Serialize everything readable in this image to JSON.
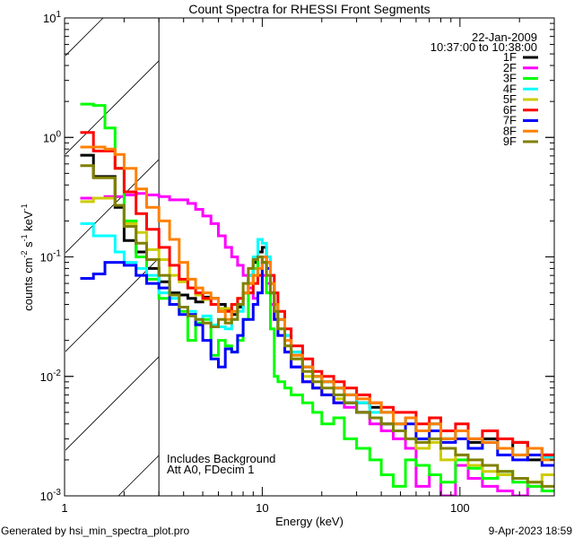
{
  "chart_data": {
    "type": "line",
    "title": "Count Spectra for RHESSI Front Segments",
    "xlabel": "Energy (keV)",
    "ylabel": {
      "base": "counts cm",
      "parts": [
        [
          "cm",
          "-2"
        ],
        [
          "s",
          "-1"
        ],
        [
          "keV",
          "-1"
        ]
      ]
    },
    "ylabel_text": "counts cm^-2 s^-1 keV^-1",
    "xscale": "log",
    "yscale": "log",
    "xlim": [
      1,
      300
    ],
    "ylim": [
      0.001,
      10
    ],
    "x_tick_labels": [
      {
        "v": 1,
        "label": "1"
      },
      {
        "v": 10,
        "label": "10"
      },
      {
        "v": 100,
        "label": "100"
      }
    ],
    "y_tick_labels": [
      {
        "v": 0.001,
        "base": "10",
        "exp": "-3"
      },
      {
        "v": 0.01,
        "base": "10",
        "exp": "-2"
      },
      {
        "v": 0.1,
        "base": "10",
        "exp": "-1"
      },
      {
        "v": 1,
        "base": "10",
        "exp": "0"
      },
      {
        "v": 10,
        "base": "10",
        "exp": "1"
      }
    ],
    "shaded_region_keV": [
      1,
      3
    ],
    "legend_placement": "top-right",
    "date": "22-Jan-2009",
    "time_range": "10:37:00 to 10:38:00",
    "annotations": [
      "Includes Background",
      "Att A0, FDecim 1"
    ],
    "energy_edges": [
      1.2,
      1.4,
      1.6,
      1.8,
      2.0,
      2.3,
      2.6,
      3.0,
      3.4,
      3.8,
      4.2,
      4.6,
      5.0,
      5.5,
      6.0,
      6.5,
      7.0,
      7.5,
      8.0,
      8.5,
      9.0,
      9.5,
      10,
      10.5,
      11,
      11.5,
      12,
      13,
      14,
      16,
      18,
      20,
      23,
      26,
      30,
      35,
      40,
      46,
      53,
      60,
      70,
      80,
      95,
      110,
      130,
      155,
      185,
      220,
      260,
      300
    ],
    "series": [
      {
        "name": "1F",
        "color": "#000000",
        "values": [
          0.71,
          0.47,
          0.47,
          0.26,
          0.137,
          0.11,
          0.08,
          0.062,
          0.05,
          0.048,
          0.045,
          0.042,
          0.046,
          0.045,
          0.04,
          0.036,
          0.033,
          0.038,
          0.05,
          0.07,
          0.09,
          0.11,
          0.12,
          0.09,
          0.06,
          0.04,
          0.03,
          0.022,
          0.016,
          0.012,
          0.01,
          0.009,
          0.008,
          0.007,
          0.006,
          0.0055,
          0.005,
          0.004,
          0.0045,
          0.0035,
          0.004,
          0.003,
          0.0035,
          0.0028,
          0.003,
          0.0025,
          0.0028,
          0.002,
          0.0022
        ]
      },
      {
        "name": "2F",
        "color": "#ff00ff",
        "values": [
          0.31,
          0.31,
          0.32,
          0.32,
          0.33,
          0.34,
          0.33,
          0.32,
          0.3,
          0.3,
          0.28,
          0.25,
          0.22,
          0.19,
          0.15,
          0.12,
          0.1,
          0.085,
          0.07,
          0.055,
          0.045,
          0.05,
          0.07,
          0.06,
          0.04,
          0.03,
          0.022,
          0.016,
          0.012,
          0.009,
          0.008,
          0.007,
          0.006,
          0.0055,
          0.005,
          0.004,
          0.0035,
          0.003,
          0.0025,
          0.0012,
          0.0015,
          0.001,
          0.0018,
          0.0014,
          0.0012,
          0.0011,
          0.001,
          0.0012,
          0.0011
        ]
      },
      {
        "name": "3F",
        "color": "#00ff00",
        "values": [
          1.9,
          1.85,
          1.2,
          0.55,
          0.2,
          0.1,
          0.065,
          0.045,
          0.04,
          0.035,
          0.02,
          0.028,
          0.03,
          0.015,
          0.02,
          0.018,
          0.016,
          0.02,
          0.03,
          0.05,
          0.08,
          0.1,
          0.09,
          0.05,
          0.025,
          0.01,
          0.009,
          0.008,
          0.007,
          0.006,
          0.005,
          0.004,
          0.0045,
          0.003,
          0.0025,
          0.002,
          0.0015,
          0.0012,
          0.002,
          0.0018,
          0.0015,
          0.0013,
          0.002,
          0.0017,
          0.0014,
          0.0016,
          0.0013,
          0.0012,
          0.0011
        ]
      },
      {
        "name": "4F",
        "color": "#00ffff",
        "values": [
          0.19,
          0.15,
          0.15,
          0.11,
          0.09,
          0.08,
          0.07,
          0.05,
          0.045,
          0.038,
          0.035,
          0.03,
          0.032,
          0.027,
          0.026,
          0.025,
          0.03,
          0.035,
          0.05,
          0.07,
          0.1,
          0.14,
          0.13,
          0.1,
          0.06,
          0.04,
          0.03,
          0.022,
          0.016,
          0.012,
          0.01,
          0.009,
          0.008,
          0.007,
          0.006,
          0.005,
          0.005,
          0.004,
          0.0045,
          0.0035,
          0.004,
          0.003,
          0.0035,
          0.003,
          0.0028,
          0.0025,
          0.0022,
          0.0025,
          0.0021
        ]
      },
      {
        "name": "5F",
        "color": "#cccc00",
        "values": [
          0.29,
          0.31,
          0.31,
          0.27,
          0.19,
          0.16,
          0.115,
          0.095,
          0.07,
          0.062,
          0.055,
          0.048,
          0.044,
          0.04,
          0.037,
          0.037,
          0.04,
          0.045,
          0.05,
          0.06,
          0.07,
          0.08,
          0.09,
          0.08,
          0.05,
          0.035,
          0.025,
          0.018,
          0.014,
          0.01,
          0.008,
          0.007,
          0.0065,
          0.006,
          0.005,
          0.0045,
          0.004,
          0.0035,
          0.003,
          0.0025,
          0.0028,
          0.002,
          0.0022,
          0.0018,
          0.0016,
          0.0015,
          0.0014,
          0.0013,
          0.0015
        ]
      },
      {
        "name": "6F",
        "color": "#ff0000",
        "values": [
          1.1,
          0.77,
          0.77,
          0.55,
          0.35,
          0.23,
          0.17,
          0.12,
          0.085,
          0.065,
          0.055,
          0.05,
          0.045,
          0.04,
          0.035,
          0.035,
          0.04,
          0.045,
          0.05,
          0.05,
          0.06,
          0.07,
          0.1,
          0.09,
          0.07,
          0.05,
          0.035,
          0.025,
          0.018,
          0.014,
          0.011,
          0.01,
          0.009,
          0.008,
          0.007,
          0.006,
          0.0055,
          0.005,
          0.005,
          0.004,
          0.0045,
          0.0035,
          0.004,
          0.003,
          0.0035,
          0.003,
          0.0028,
          0.0025,
          0.0022
        ]
      },
      {
        "name": "7F",
        "color": "#0000ff",
        "values": [
          0.066,
          0.072,
          0.09,
          0.09,
          0.085,
          0.07,
          0.06,
          0.055,
          0.04,
          0.033,
          0.033,
          0.027,
          0.02,
          0.014,
          0.012,
          0.017,
          0.016,
          0.022,
          0.03,
          0.03,
          0.04,
          0.05,
          0.09,
          0.08,
          0.05,
          0.03,
          0.022,
          0.016,
          0.012,
          0.009,
          0.008,
          0.007,
          0.006,
          0.006,
          0.005,
          0.0045,
          0.004,
          0.0035,
          0.004,
          0.003,
          0.0035,
          0.0028,
          0.003,
          0.0025,
          0.0028,
          0.0022,
          0.002,
          0.0022,
          0.0018
        ]
      },
      {
        "name": "8F",
        "color": "#ff8000",
        "values": [
          0.83,
          0.83,
          0.8,
          0.72,
          0.55,
          0.37,
          0.26,
          0.2,
          0.14,
          0.09,
          0.065,
          0.055,
          0.05,
          0.045,
          0.035,
          0.03,
          0.035,
          0.04,
          0.05,
          0.06,
          0.07,
          0.08,
          0.1,
          0.09,
          0.06,
          0.04,
          0.03,
          0.02,
          0.015,
          0.012,
          0.01,
          0.009,
          0.008,
          0.007,
          0.0065,
          0.006,
          0.005,
          0.004,
          0.0045,
          0.0035,
          0.004,
          0.003,
          0.0035,
          0.003,
          0.0028,
          0.0025,
          0.0022,
          0.0025,
          0.002
        ]
      },
      {
        "name": "9F",
        "color": "#808000",
        "values": [
          0.58,
          0.46,
          0.46,
          0.27,
          0.18,
          0.13,
          0.095,
          0.07,
          0.048,
          0.038,
          0.032,
          0.03,
          0.028,
          0.026,
          0.03,
          0.028,
          0.03,
          0.04,
          0.06,
          0.08,
          0.095,
          0.1,
          0.09,
          0.07,
          0.05,
          0.035,
          0.025,
          0.018,
          0.014,
          0.011,
          0.009,
          0.008,
          0.007,
          0.006,
          0.005,
          0.0045,
          0.004,
          0.0035,
          0.003,
          0.0028,
          0.003,
          0.0025,
          0.0022,
          0.002,
          0.0018,
          0.0016,
          0.0014,
          0.0013,
          0.0012
        ]
      }
    ]
  },
  "footer": {
    "generated_by": "Generated by hsi_min_spectra_plot.pro",
    "timestamp": "9-Apr-2023 18:59"
  }
}
